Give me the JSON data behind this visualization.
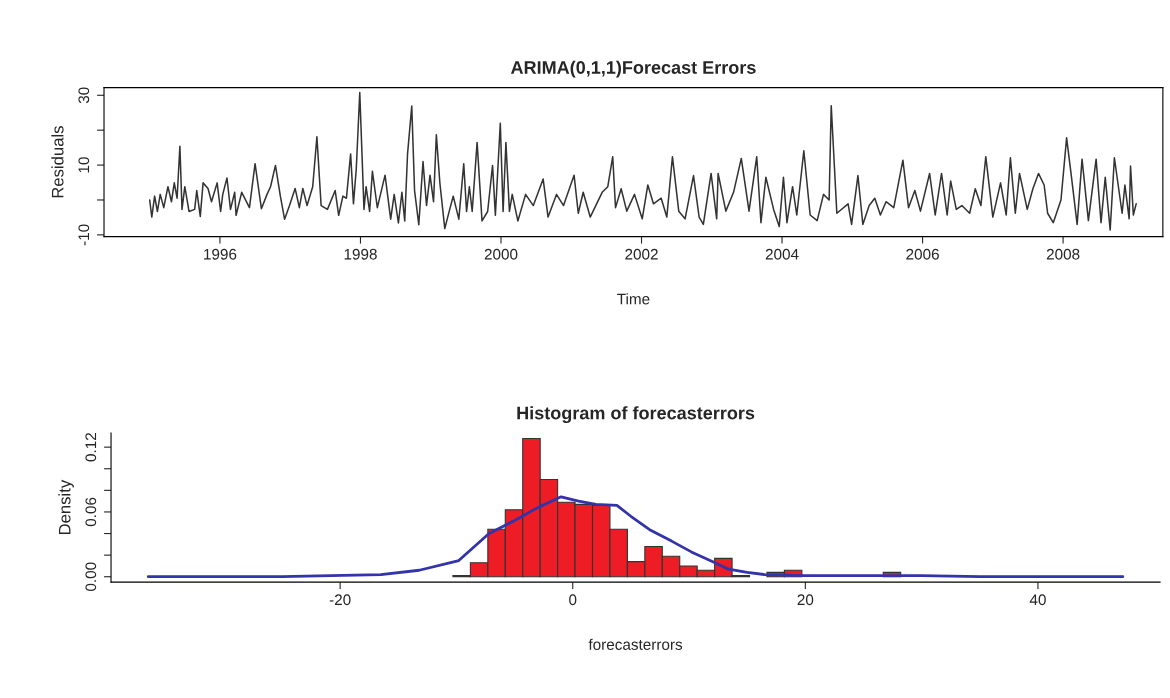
{
  "chart_data": [
    {
      "type": "line",
      "title": "ARIMA(0,1,1)Forecast Errors",
      "xlabel": "Time",
      "ylabel": "Residuals",
      "xlim": [
        1994.35,
        2009.42
      ],
      "ylim": [
        -10.5,
        32.2
      ],
      "xticks": [
        1996,
        1998,
        2000,
        2002,
        2004,
        2006,
        2008
      ],
      "yticks": [
        -10,
        {
          "value": 0,
          "label": null
        },
        10,
        {
          "value": 20,
          "label": null
        },
        30
      ],
      "grid": false,
      "series": [
        {
          "color": "#333333",
          "x": [
            1995.0,
            1995.03,
            1995.07,
            1995.11,
            1995.15,
            1995.2,
            1995.26,
            1995.31,
            1995.35,
            1995.39,
            1995.43,
            1995.46,
            1995.5,
            1995.56,
            1995.64,
            1995.67,
            1995.72,
            1995.76,
            1995.83,
            1995.88,
            1995.96,
            1996.01,
            1996.04,
            1996.1,
            1996.15,
            1996.21,
            1996.23,
            1996.31,
            1996.42,
            1996.5,
            1996.59,
            1996.67,
            1996.72,
            1996.79,
            1996.86,
            1996.92,
            1996.99,
            1997.07,
            1997.13,
            1997.18,
            1997.24,
            1997.32,
            1997.38,
            1997.44,
            1997.53,
            1997.64,
            1997.69,
            1997.75,
            1997.8,
            1997.86,
            1997.9,
            1997.94,
            1997.99,
            1998.05,
            1998.08,
            1998.13,
            1998.17,
            1998.24,
            1998.35,
            1998.43,
            1998.48,
            1998.54,
            1998.59,
            1998.63,
            1998.67,
            1998.73,
            1998.77,
            1998.83,
            1998.89,
            1998.94,
            1998.99,
            1999.04,
            1999.08,
            1999.13,
            1999.2,
            1999.27,
            1999.32,
            1999.4,
            1999.47,
            1999.51,
            1999.55,
            1999.59,
            1999.66,
            1999.73,
            1999.81,
            1999.88,
            1999.92,
            1999.99,
            2000.03,
            2000.07,
            2000.12,
            2000.16,
            2000.24,
            2000.35,
            2000.46,
            2000.6,
            2000.67,
            2000.79,
            2000.89,
            2001.04,
            2001.1,
            2001.17,
            2001.27,
            2001.44,
            2001.52,
            2001.59,
            2001.63,
            2001.71,
            2001.79,
            2001.9,
            2002.01,
            2002.09,
            2002.17,
            2002.28,
            2002.36,
            2002.44,
            2002.53,
            2002.62,
            2002.74,
            2002.82,
            2002.88,
            2002.99,
            2003.07,
            2003.09,
            2003.2,
            2003.31,
            2003.42,
            2003.53,
            2003.64,
            2003.7,
            2003.77,
            2003.88,
            2003.96,
            2004.02,
            2004.07,
            2004.15,
            2004.21,
            2004.31,
            2004.4,
            2004.5,
            2004.59,
            2004.67,
            2004.7,
            2004.78,
            2004.94,
            2004.99,
            2005.08,
            2005.15,
            2005.24,
            2005.32,
            2005.4,
            2005.48,
            2005.59,
            2005.72,
            2005.8,
            2005.89,
            2005.97,
            2006.1,
            2006.18,
            2006.27,
            2006.35,
            2006.4,
            2006.48,
            2006.56,
            2006.67,
            2006.75,
            2006.83,
            2006.9,
            2007.0,
            2007.11,
            2007.19,
            2007.25,
            2007.32,
            2007.38,
            2007.49,
            2007.57,
            2007.65,
            2007.73,
            2007.78,
            2007.86,
            2007.97,
            2008.05,
            2008.11,
            2008.2,
            2008.27,
            2008.36,
            2008.47,
            2008.54,
            2008.6,
            2008.67,
            2008.73,
            2008.84,
            2008.88,
            2008.94,
            2008.96,
            2009.0,
            2009.04
          ],
          "values": [
            0,
            -4.9,
            1.1,
            -3.3,
            1.6,
            -2.2,
            3.8,
            -0.5,
            4.9,
            0.5,
            15.4,
            -2.7,
            3.8,
            -3.3,
            -2.7,
            2.7,
            -4.7,
            4.9,
            3.3,
            -0.5,
            4.9,
            -3.3,
            1.6,
            6.3,
            -2.7,
            2.2,
            -4.4,
            2.2,
            -2.2,
            10.4,
            -2.5,
            1.6,
            3.8,
            9.9,
            1.1,
            -5.5,
            -1.6,
            3.3,
            -2.2,
            3.3,
            -1.6,
            3.8,
            18.1,
            -1.6,
            -2.7,
            2.7,
            -4.4,
            1.1,
            0.5,
            13.2,
            -1.1,
            8.8,
            30.8,
            -2.7,
            3.8,
            -3.3,
            8.2,
            -2.2,
            7.1,
            -5.5,
            1.6,
            -6.6,
            2.2,
            -6.0,
            13.2,
            26.9,
            2.7,
            -7.1,
            11.0,
            -1.6,
            7.1,
            -0.5,
            18.7,
            4.9,
            -8.2,
            -2.7,
            1.1,
            -5.5,
            10.4,
            -3.3,
            3.8,
            -3.3,
            16.5,
            -6.0,
            -3.3,
            9.9,
            -4.4,
            22.0,
            -3.3,
            16.5,
            -3.3,
            1.6,
            -6.0,
            1.6,
            -1.6,
            6.0,
            -4.9,
            1.6,
            -1.6,
            7.1,
            -3.8,
            2.2,
            -4.9,
            2.2,
            3.8,
            12.4,
            -2.2,
            3.2,
            -3.2,
            1.6,
            -5.4,
            4.3,
            -1.1,
            0.5,
            -4.9,
            12.4,
            -3.2,
            -5.4,
            7.0,
            -4.9,
            -7.0,
            7.6,
            -5.4,
            7.6,
            -3.2,
            2.2,
            11.9,
            -3.2,
            12.4,
            -6.5,
            6.5,
            -2.7,
            -7.6,
            6.5,
            -6.5,
            3.8,
            -4.3,
            14.1,
            -4.3,
            -5.9,
            1.6,
            0,
            27.0,
            -3.8,
            -1.1,
            -7.0,
            7.0,
            -7.0,
            -1.6,
            0.5,
            -4.3,
            -0.5,
            -2.2,
            11.4,
            -2.2,
            2.7,
            -3.2,
            7.6,
            -4.3,
            7.6,
            -4.3,
            5.4,
            -2.7,
            -1.6,
            -3.8,
            3.2,
            -1.6,
            12.4,
            -4.9,
            4.9,
            -4.3,
            12.1,
            -3.8,
            7.6,
            -2.7,
            3.2,
            7.6,
            4.3,
            -3.8,
            -6.5,
            0,
            17.8,
            8.1,
            -7.0,
            11.7,
            -5.9,
            11.7,
            -6.5,
            6.5,
            -8.6,
            12.1,
            -3.8,
            4.3,
            -5.4,
            9.7,
            -4.3,
            -1.1
          ]
        }
      ]
    },
    {
      "type": "histogram",
      "title": "Histogram of forecasterrors",
      "xlabel": "forecasterrors",
      "ylabel": "Density",
      "xlim": [
        -39.7,
        50.5
      ],
      "ylim": [
        -0.005,
        0.133
      ],
      "xticks": [
        -20,
        0,
        20,
        40
      ],
      "yticks": [
        {
          "value": 0,
          "label": "0.00"
        },
        {
          "value": 0.02,
          "label": null
        },
        {
          "value": 0.04,
          "label": null
        },
        {
          "value": 0.06,
          "label": "0.06"
        },
        {
          "value": 0.08,
          "label": null
        },
        {
          "value": 0.1,
          "label": null
        },
        {
          "value": 0.12,
          "label": "0.12"
        }
      ],
      "grid": false,
      "color": "#ee1c24",
      "bins": [
        -10.3,
        -8.8,
        -7.3,
        -5.8,
        -4.3,
        -2.8,
        -1.3,
        0.2,
        1.7,
        3.2,
        4.7,
        6.2,
        7.7,
        9.2,
        10.7,
        12.2,
        13.7,
        15.2,
        16.7,
        18.2,
        19.7,
        26.7,
        28.2
      ],
      "values": [
        0.001,
        0.013,
        0.044,
        0.062,
        0.128,
        0.09,
        0.069,
        0.067,
        0.066,
        0.044,
        0.014,
        0.028,
        0.019,
        0.01,
        0.006,
        0.017,
        0.001,
        0,
        0.004,
        0.006,
        0,
        0.004
      ],
      "series": [
        {
          "type": "line",
          "color": "#3333aa",
          "x": [
            -36.5,
            -30,
            -25,
            -20.8,
            -16.5,
            -13.2,
            -9.8,
            -7.2,
            -5,
            -3,
            -1,
            0.5,
            2,
            3.8,
            5,
            6.7,
            8.5,
            10.2,
            12,
            13.4,
            15,
            16.5,
            20,
            25,
            30,
            35,
            40,
            47.3
          ],
          "values": [
            0,
            0,
            0,
            0.001,
            0.002,
            0.006,
            0.015,
            0.04,
            0.052,
            0.064,
            0.074,
            0.07,
            0.067,
            0.066,
            0.056,
            0.043,
            0.033,
            0.023,
            0.014,
            0.007,
            0.004,
            0.002,
            0.001,
            0.001,
            0.001,
            0,
            0,
            0
          ]
        }
      ]
    }
  ]
}
